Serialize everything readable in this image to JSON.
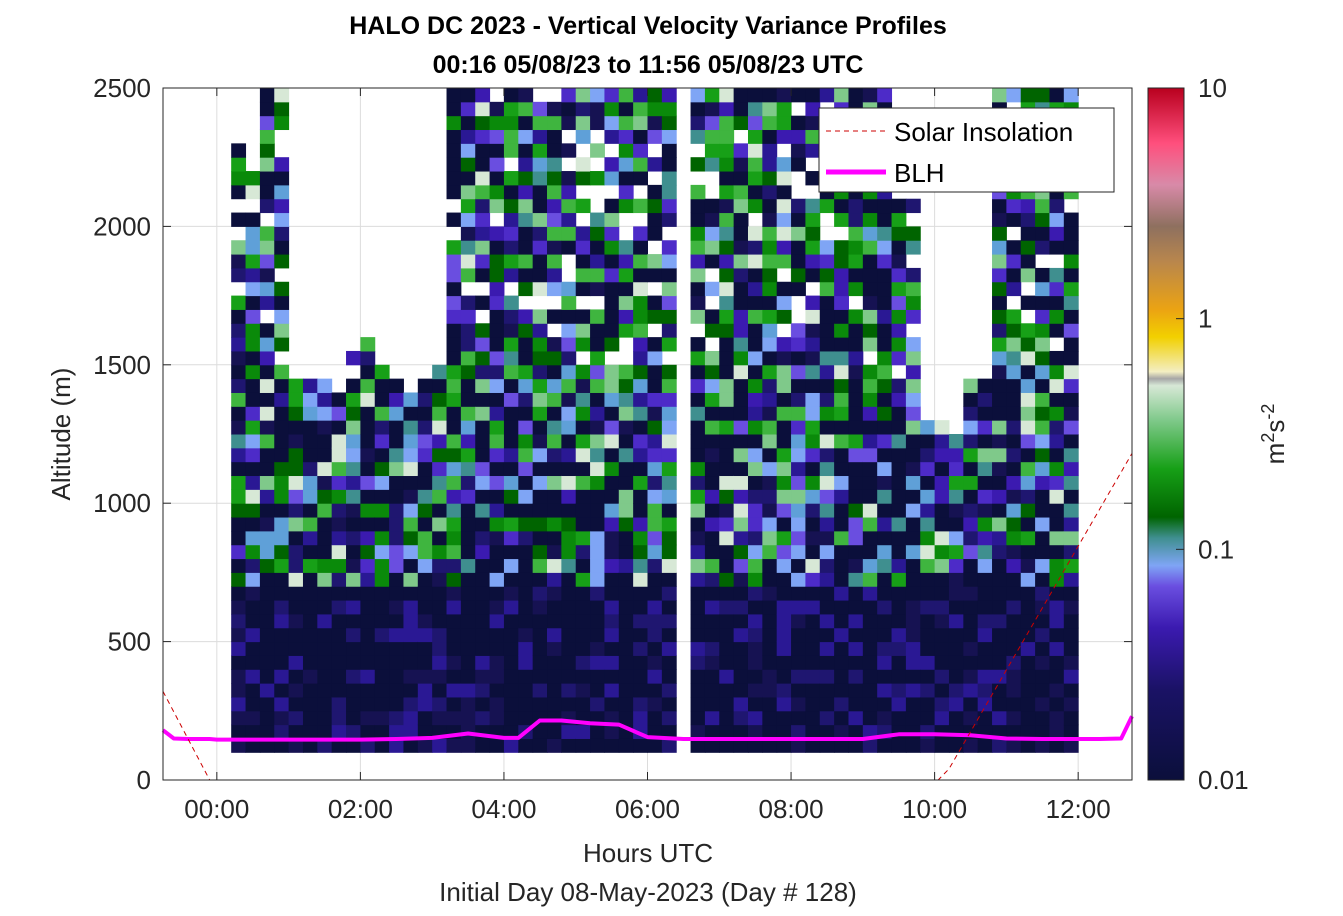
{
  "chart_data": {
    "type": "heatmap",
    "title": "HALO DC 2023 - Vertical Velocity Variance Profiles",
    "subtitle": "00:16 05/08/23 to 11:56 05/08/23  UTC",
    "xlabel": "Hours UTC",
    "xlabel2": "Initial Day 08-May-2023 (Day # 128)",
    "ylabel": "Altitude (m)",
    "x_unit": "hours UTC",
    "xlim": [
      -0.75,
      12.75
    ],
    "ylim": [
      0,
      2500
    ],
    "xticks": [
      0,
      2,
      4,
      6,
      8,
      10,
      12
    ],
    "xtick_labels": [
      "00:00",
      "02:00",
      "04:00",
      "06:00",
      "08:00",
      "10:00",
      "12:00"
    ],
    "yticks": [
      0,
      500,
      1000,
      1500,
      2000,
      2500
    ],
    "ytick_labels": [
      "0",
      "500",
      "1000",
      "1500",
      "2000",
      "2500"
    ],
    "grid": true,
    "legend_position": "top-right",
    "legend": [
      {
        "label": "Solar Insolation",
        "style": "dashed",
        "color": "#cc0000"
      },
      {
        "label": "BLH",
        "style": "solid",
        "color": "#ff00ff"
      }
    ],
    "colorbar": {
      "scale": "log",
      "range": [
        0.01,
        10
      ],
      "ticks": [
        0.01,
        0.1,
        1,
        10
      ],
      "tick_labels": [
        "0.01",
        "0.1",
        "1",
        "10"
      ],
      "unit_label": "m",
      "unit_sup1": "2",
      "unit_mid": "s",
      "unit_sup2": "-2"
    },
    "bin_width_hours": 0.2,
    "bin_height_m": 50,
    "column_start_hours": [
      0.2,
      0.4,
      0.6,
      0.8,
      1.0,
      1.2,
      1.4,
      1.6,
      1.8,
      2.0,
      2.2,
      2.4,
      2.6,
      2.8,
      3.0,
      3.2,
      3.4,
      3.6,
      3.8,
      4.0,
      4.2,
      4.4,
      4.6,
      4.8,
      5.0,
      5.2,
      5.4,
      5.6,
      5.8,
      6.0,
      6.2,
      6.6,
      6.8,
      7.0,
      7.2,
      7.4,
      7.6,
      7.8,
      8.0,
      8.2,
      8.4,
      8.6,
      8.8,
      9.0,
      9.2,
      9.4,
      9.6,
      9.8,
      10.0,
      10.2,
      10.4,
      10.6,
      10.8,
      11.0,
      11.2,
      11.4,
      11.6,
      11.8
    ],
    "column_tops_m": [
      2300,
      2200,
      2500,
      2500,
      1450,
      1450,
      1500,
      1400,
      1550,
      1600,
      1550,
      1450,
      1400,
      1450,
      1500,
      2500,
      2500,
      2500,
      2500,
      2500,
      2500,
      2500,
      2500,
      2500,
      2500,
      2500,
      2500,
      2500,
      2500,
      2500,
      2500,
      2500,
      2500,
      2500,
      2500,
      2500,
      2500,
      2500,
      2500,
      2500,
      2500,
      2500,
      2500,
      2500,
      2500,
      2100,
      2100,
      1300,
      1300,
      1250,
      1450,
      1450,
      2500,
      2500,
      2500,
      2500,
      2500,
      2500
    ],
    "series": [
      {
        "name": "BLH",
        "x": [
          -0.75,
          -0.6,
          -0.4,
          -0.1,
          0.0,
          0.5,
          1.0,
          2.0,
          2.5,
          3.0,
          3.5,
          4.0,
          4.2,
          4.5,
          4.8,
          5.2,
          5.6,
          6.0,
          6.5,
          7.0,
          8.0,
          9.0,
          9.5,
          10.0,
          10.5,
          11.0,
          11.5,
          12.0,
          12.3,
          12.6,
          12.75
        ],
        "y": [
          180,
          150,
          148,
          148,
          146,
          146,
          146,
          146,
          148,
          152,
          168,
          152,
          152,
          215,
          215,
          205,
          200,
          155,
          148,
          148,
          148,
          148,
          165,
          165,
          162,
          150,
          148,
          148,
          148,
          150,
          230
        ]
      },
      {
        "name": "Solar Insolation",
        "x": [
          -0.75,
          -0.1,
          0.0,
          10.05,
          10.2,
          12.75
        ],
        "y": [
          320,
          0,
          0,
          0,
          40,
          1180
        ]
      }
    ]
  }
}
